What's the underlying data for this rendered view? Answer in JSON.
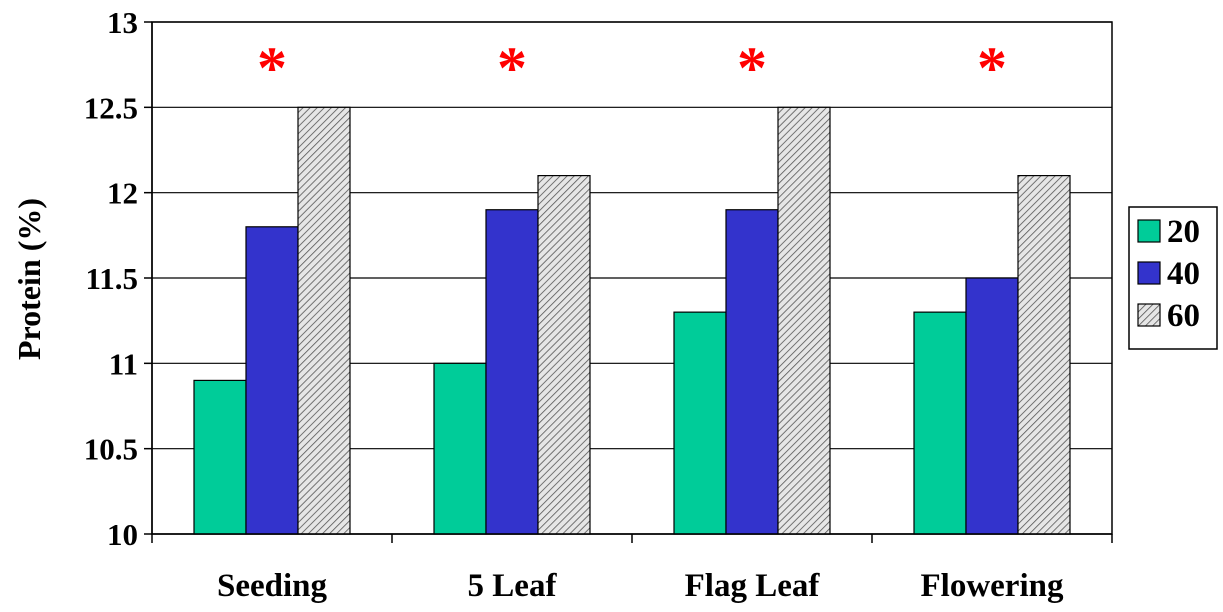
{
  "chart_data": {
    "type": "bar",
    "title": "",
    "xlabel": "",
    "ylabel": "Protein (%)",
    "ylim": [
      10,
      13
    ],
    "yticks": [
      "10",
      "10.5",
      "11",
      "11.5",
      "12",
      "12.5",
      "13"
    ],
    "categories": [
      "Seeding",
      "5 Leaf",
      "Flag Leaf",
      "Flowering"
    ],
    "series": [
      {
        "name": "20",
        "values": [
          10.9,
          11.0,
          11.3,
          11.3
        ],
        "color": "#00cc99",
        "pattern": "solid"
      },
      {
        "name": "40",
        "values": [
          11.8,
          11.9,
          11.9,
          11.5
        ],
        "color": "#3333cc",
        "pattern": "solid"
      },
      {
        "name": "60",
        "values": [
          12.5,
          12.1,
          12.5,
          12.1
        ],
        "color": "#cfcfcf",
        "pattern": "hatch"
      }
    ],
    "annotations": [
      {
        "category": "Seeding",
        "text": "*",
        "color": "#ff0000"
      },
      {
        "category": "5 Leaf",
        "text": "*",
        "color": "#ff0000"
      },
      {
        "category": "Flag Leaf",
        "text": "*",
        "color": "#ff0000"
      },
      {
        "category": "Flowering",
        "text": "*",
        "color": "#ff0000"
      }
    ],
    "grid": true,
    "legend": "right"
  }
}
